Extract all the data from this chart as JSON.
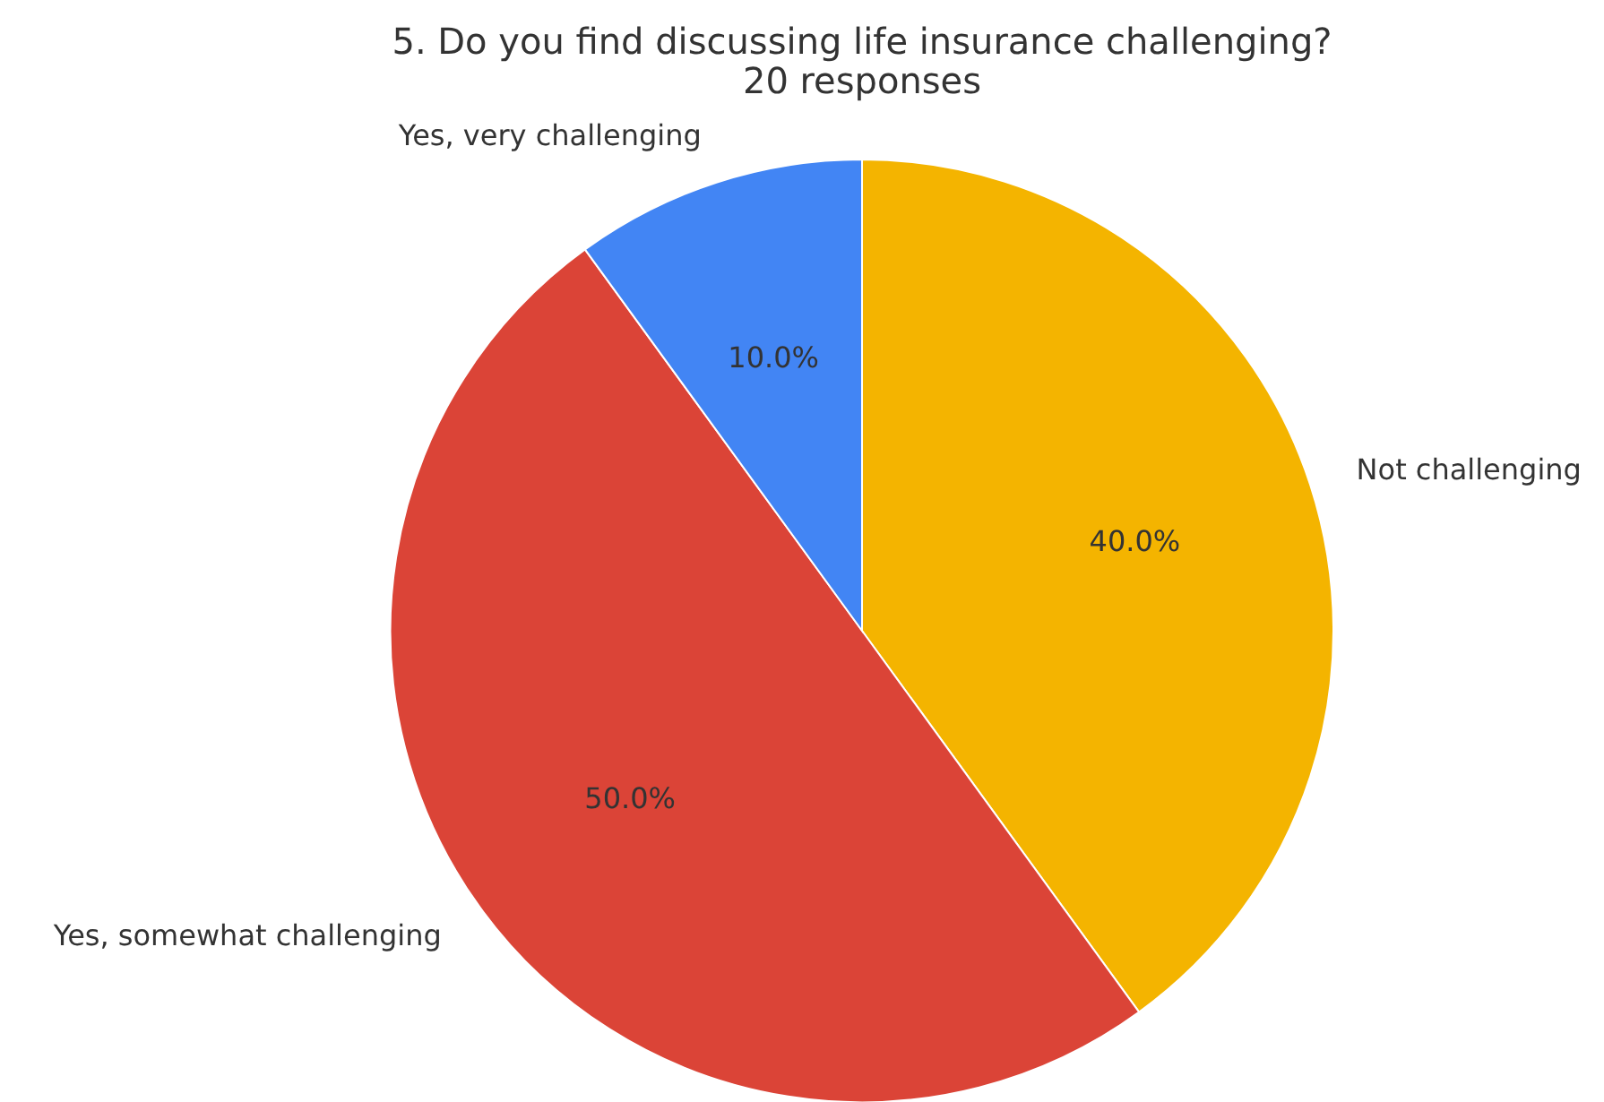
{
  "chart_data": {
    "type": "pie",
    "title": "5. Do you find discussing life insurance challenging?",
    "subtitle": "20 responses",
    "categories": [
      "Not challenging",
      "Yes, somewhat challenging",
      "Yes, very challenging"
    ],
    "values": [
      40,
      50,
      10
    ],
    "colors": [
      "#f4b400",
      "#db4437",
      "#4285f4"
    ],
    "value_labels": [
      "40.0%",
      "50.0%",
      "10.0%"
    ],
    "legend": false
  }
}
